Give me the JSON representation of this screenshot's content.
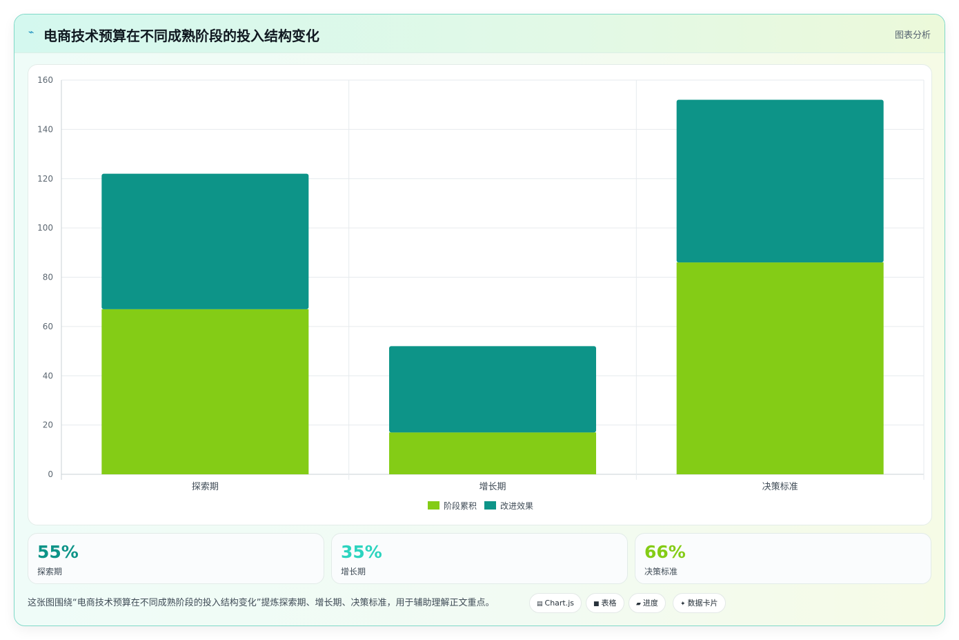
{
  "header": {
    "title": "电商技术预算在不同成熟阶段的投入结构变化",
    "tag": "图表分析",
    "icon": "chart-line-icon"
  },
  "chart_data": {
    "type": "bar",
    "stacked": true,
    "categories": [
      "探索期",
      "增长期",
      "决策标准"
    ],
    "series": [
      {
        "name": "阶段累积",
        "values": [
          67,
          17,
          86
        ],
        "color": "#84cc16"
      },
      {
        "name": "改进效果",
        "values": [
          55,
          35,
          66
        ],
        "color": "#0d9488"
      }
    ],
    "ylim": [
      0,
      160
    ],
    "yticks": [
      0,
      20,
      40,
      60,
      80,
      100,
      120,
      140,
      160
    ],
    "grid": true,
    "legend": "bottom"
  },
  "stats": [
    {
      "value": "55%",
      "label": "探索期",
      "color": "#0d9488"
    },
    {
      "value": "35%",
      "label": "增长期",
      "color": "#2dd4bf"
    },
    {
      "value": "66%",
      "label": "决策标准",
      "color": "#84cc16"
    }
  ],
  "footer": {
    "text": "这张图围绕“电商技术预算在不同成熟阶段的投入结构变化”提炼探索期、增长期、决策标准，用于辅助理解正文重点。",
    "chips": [
      {
        "icon": "chart-icon",
        "label": "Chart.js"
      },
      {
        "icon": "table-icon",
        "label": "表格"
      },
      {
        "icon": "progress-icon",
        "label": "进度"
      },
      {
        "icon": "sparkle-icon",
        "label": "数据卡片"
      }
    ]
  }
}
